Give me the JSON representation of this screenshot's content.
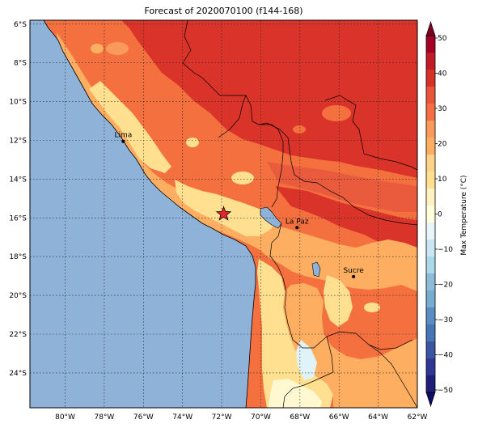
{
  "title": "Forecast of 2020070100 (f144-168)",
  "map": {
    "lat_ticks": [
      {
        "lat": -6,
        "label": "6°S"
      },
      {
        "lat": -8,
        "label": "8°S"
      },
      {
        "lat": -10,
        "label": "10°S"
      },
      {
        "lat": -12,
        "label": "12°S"
      },
      {
        "lat": -14,
        "label": "14°S"
      },
      {
        "lat": -16,
        "label": "16°S"
      },
      {
        "lat": -18,
        "label": "18°S"
      },
      {
        "lat": -20,
        "label": "20°S"
      },
      {
        "lat": -22,
        "label": "22°S"
      },
      {
        "lat": -24,
        "label": "24°S"
      }
    ],
    "lon_ticks": [
      {
        "lon": -80,
        "label": "80°W"
      },
      {
        "lon": -78,
        "label": "78°W"
      },
      {
        "lon": -76,
        "label": "76°W"
      },
      {
        "lon": -74,
        "label": "74°W"
      },
      {
        "lon": -72,
        "label": "72°W"
      },
      {
        "lon": -70,
        "label": "70°W"
      },
      {
        "lon": -68,
        "label": "68°W"
      },
      {
        "lon": -66,
        "label": "66°W"
      },
      {
        "lon": -64,
        "label": "64°W"
      },
      {
        "lon": -62,
        "label": "62°W"
      }
    ],
    "extent": {
      "lon_min": -81.8,
      "lon_max": -62,
      "lat_min": -25.8,
      "lat_max": -5.8
    },
    "ocean_color": "#8fb3d8",
    "cities": [
      {
        "name": "Lima",
        "lon": -77.03,
        "lat": -12.05
      },
      {
        "name": "La Paz",
        "lon": -68.15,
        "lat": -16.5
      },
      {
        "name": "Sucre",
        "lon": -65.26,
        "lat": -19.03
      }
    ],
    "star": {
      "lon": -71.9,
      "lat": -15.8,
      "color": "#e8262b"
    }
  },
  "colorbar": {
    "label": "Max Temperature (°C)",
    "ticks": [
      "50",
      "40",
      "30",
      "20",
      "10",
      "0",
      "−10",
      "−20",
      "−30",
      "−40",
      "−50"
    ],
    "colors": [
      "#a50026",
      "#c21a28",
      "#d73027",
      "#e8553a",
      "#f46d43",
      "#f99a5a",
      "#fdae61",
      "#fed28a",
      "#fee090",
      "#fff2c0",
      "#ffffdc",
      "#e8f6fb",
      "#c9e6f2",
      "#abd9e9",
      "#8dbcdb",
      "#74add1",
      "#5b8cc3",
      "#4575b4",
      "#3a55a3",
      "#313695",
      "#1f1f7a"
    ],
    "top_arrow": "#7a0020",
    "bottom_arrow": "#0d0d66"
  }
}
